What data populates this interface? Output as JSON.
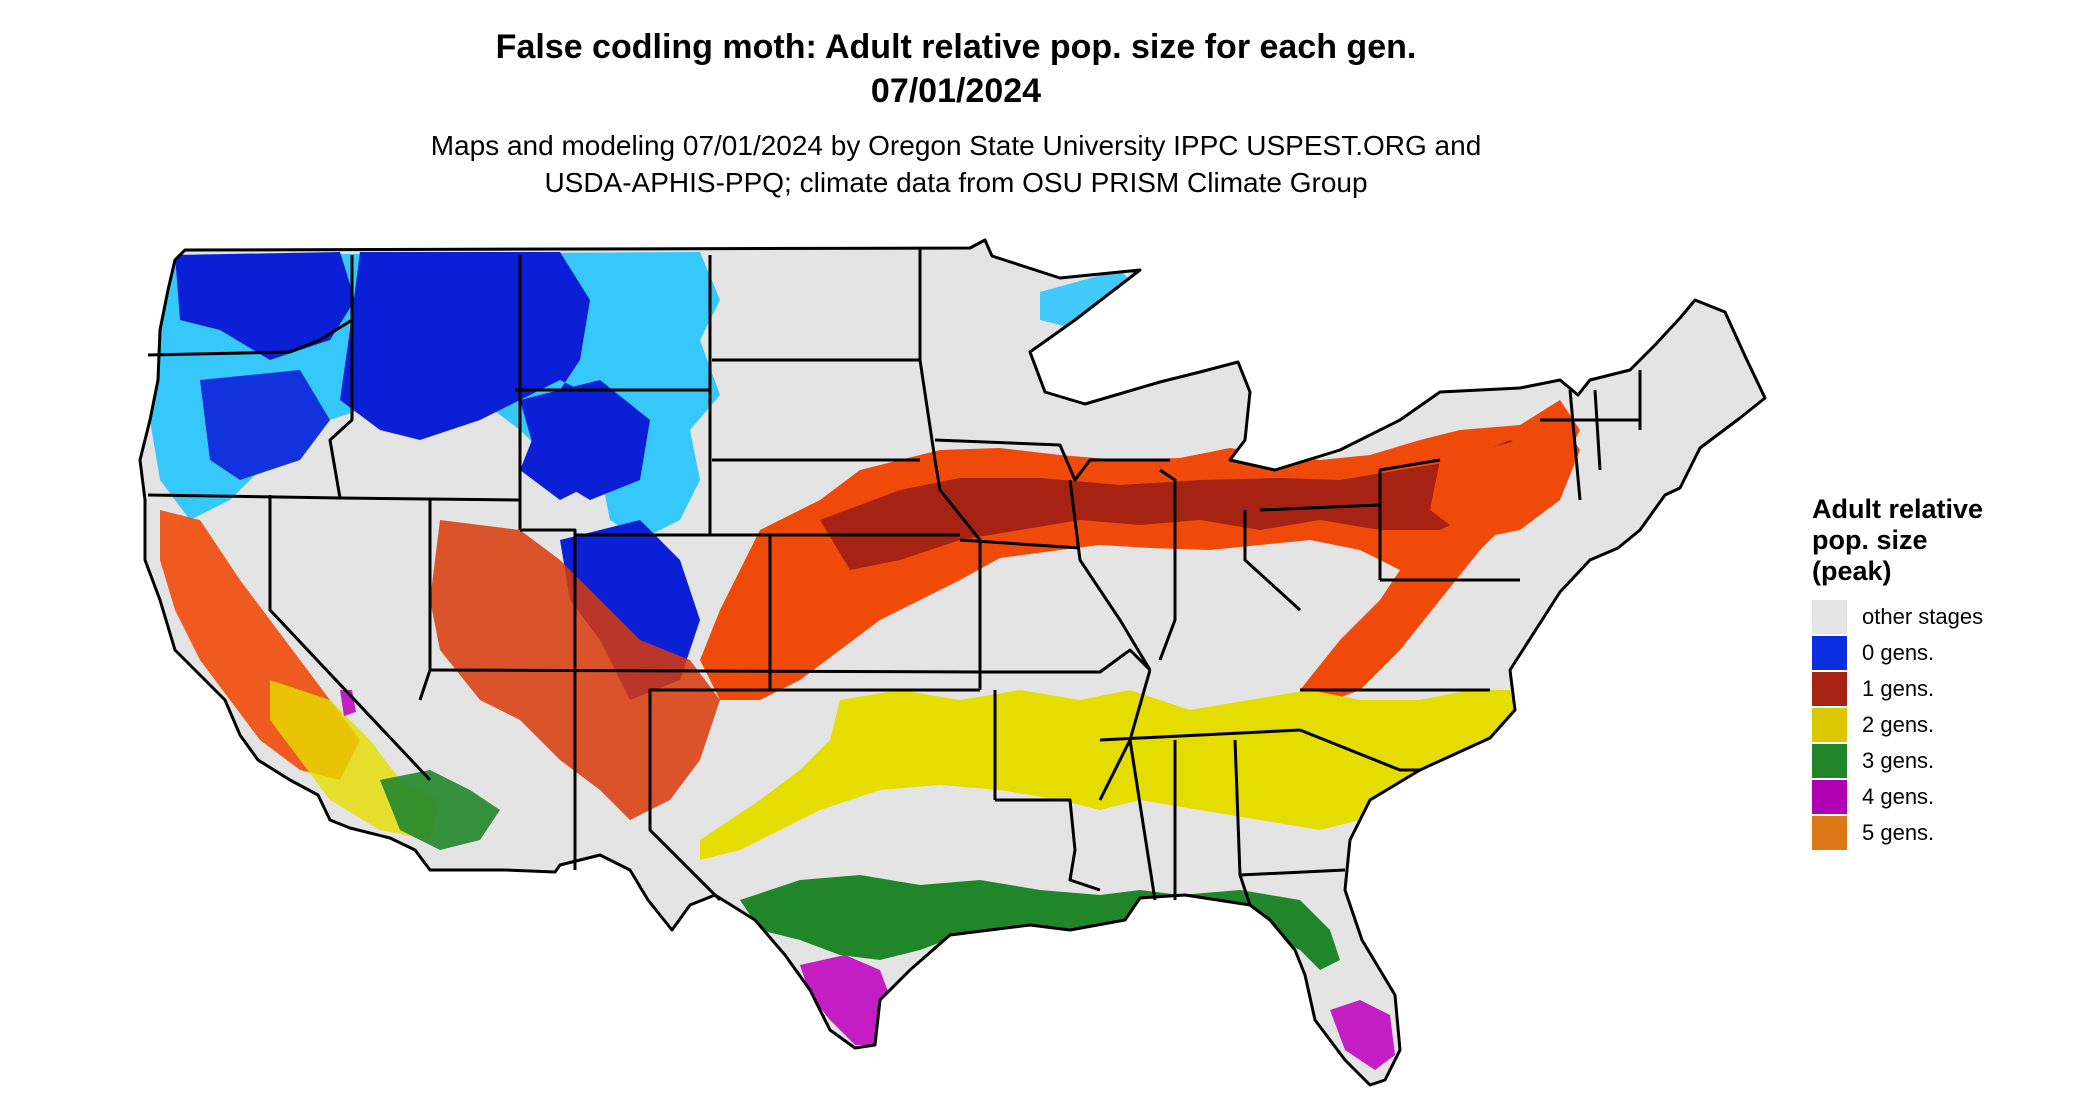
{
  "title": {
    "line1": "False codling moth: Adult relative pop. size for each gen.",
    "line2": "07/01/2024"
  },
  "subtitle": {
    "line1": "Maps and modeling 07/01/2024 by Oregon State University IPPC USPEST.ORG and",
    "line2": "USDA-APHIS-PPQ; climate data from OSU PRISM Climate Group"
  },
  "legend": {
    "title_line1": "Adult relative",
    "title_line2": "pop. size",
    "title_line3": "(peak)",
    "items": [
      {
        "label": "other stages",
        "color": "#e4e4e4"
      },
      {
        "label": "0 gens.",
        "color": "#0a2fe0"
      },
      {
        "label": "1 gens.",
        "color": "#a62313"
      },
      {
        "label": "2 gens.",
        "color": "#dcc800"
      },
      {
        "label": "3 gens.",
        "color": "#21862a"
      },
      {
        "label": "4 gens.",
        "color": "#b000b4"
      },
      {
        "label": "5 gens.",
        "color": "#dc7818"
      }
    ]
  },
  "map_colors": {
    "background": "#e4e4e4",
    "light_blue": "#19c3ff",
    "dark_blue": "#0a1fd6",
    "mid_blue": "#1461f0",
    "orange_red": "#f04a0a",
    "dark_red": "#a62313",
    "yellow": "#e6dd00",
    "green": "#21862a",
    "magenta": "#c31ec3",
    "orange": "#dc7818",
    "border": "#000000"
  }
}
